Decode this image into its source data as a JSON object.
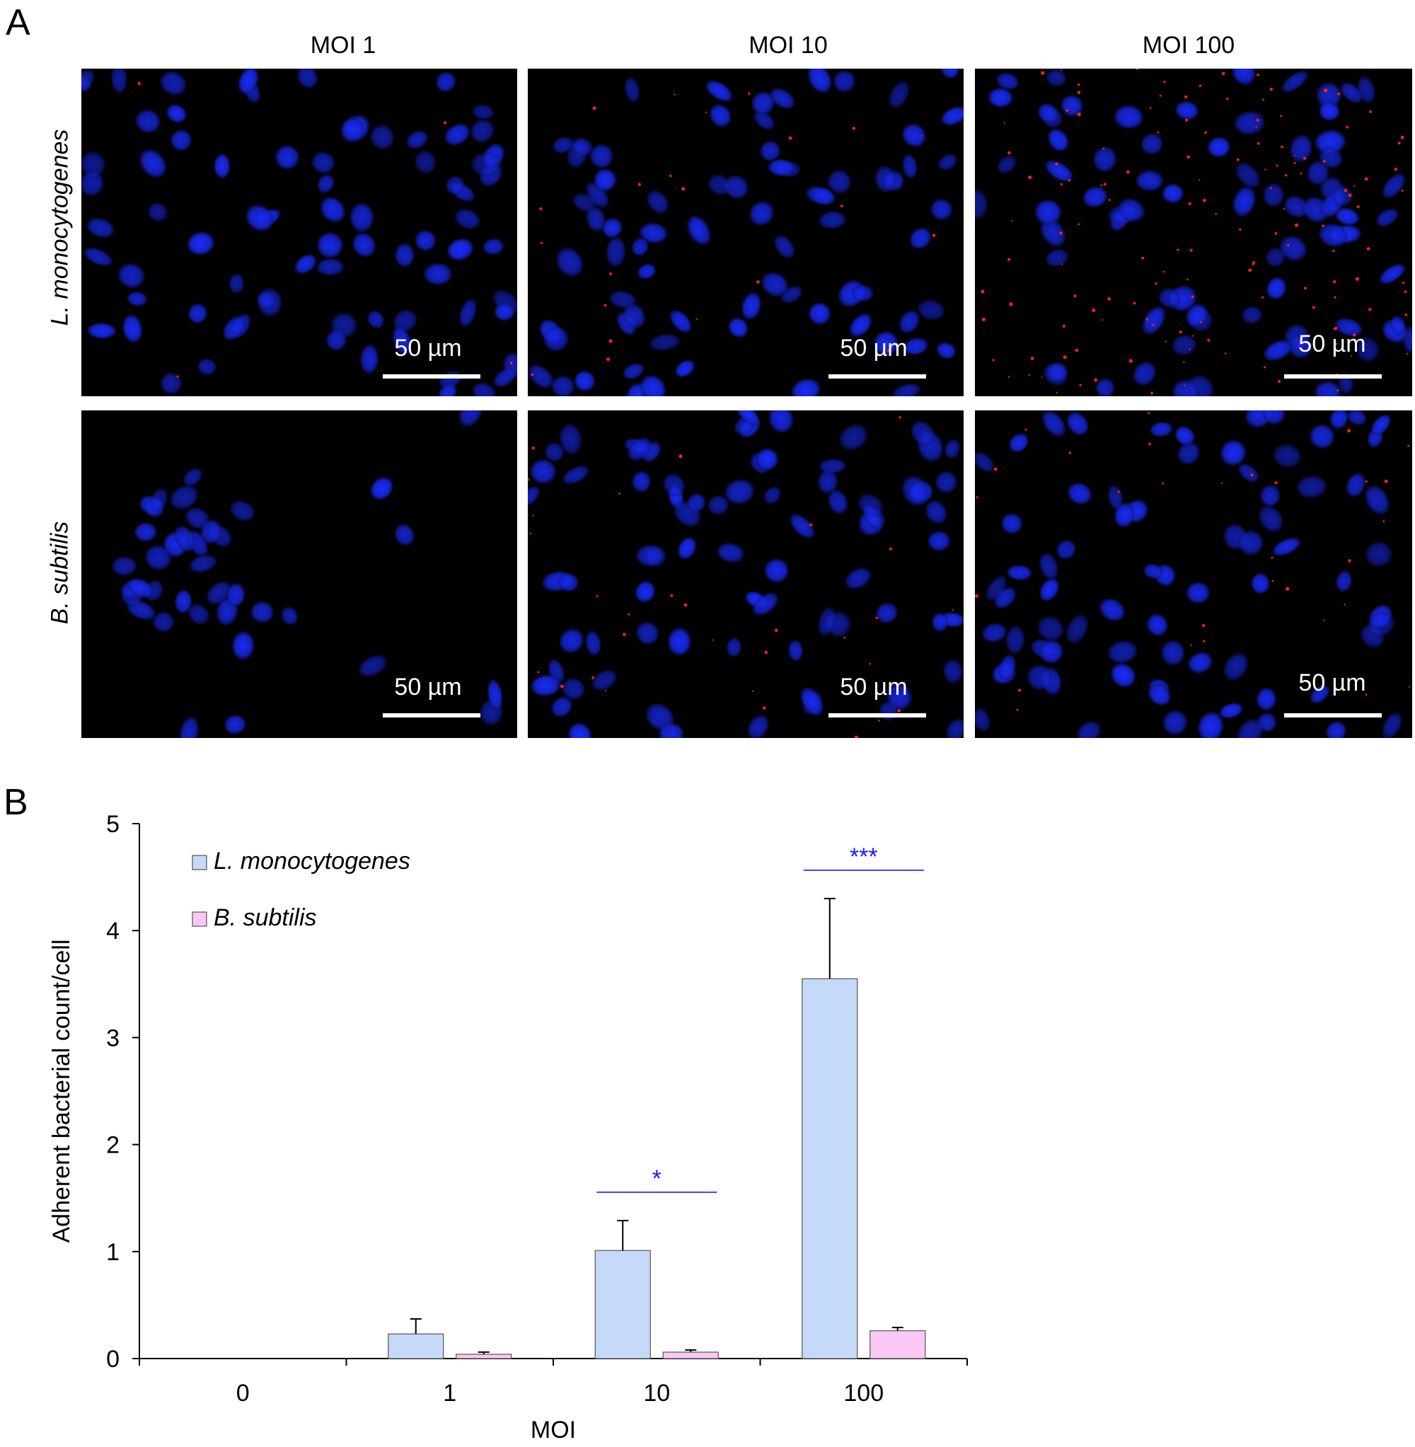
{
  "panel_a": {
    "letter": "A",
    "columns": [
      "MOI 1",
      "MOI 10",
      "MOI 100"
    ],
    "rows": [
      "L. monocytogenes",
      "B. subtilis"
    ],
    "scale_label": "50 µm",
    "colors": {
      "nucleus": "#1a2cff",
      "bacteria": "#ff2020",
      "background": "#000000"
    }
  },
  "panel_b": {
    "letter": "B",
    "legend": [
      {
        "label": "L. monocytogenes",
        "color": "#c5d9f9"
      },
      {
        "label": "B. subtilis",
        "color": "#fbc8f4"
      }
    ],
    "significance": [
      {
        "category": "10",
        "label": "*"
      },
      {
        "category": "100",
        "label": "***"
      }
    ],
    "significance_color": "#1a1aff"
  },
  "chart_data": {
    "type": "bar",
    "categories": [
      "0",
      "1",
      "10",
      "100"
    ],
    "xlabel": "MOI",
    "ylabel": "Adherent bacterial count/cell",
    "ylim": [
      0,
      5
    ],
    "yticks": [
      0,
      1,
      2,
      3,
      4,
      5
    ],
    "series": [
      {
        "name": "L. monocytogenes",
        "values": [
          0,
          0.23,
          1.01,
          3.55
        ],
        "errors": [
          0,
          0.14,
          0.28,
          0.75
        ]
      },
      {
        "name": "B. subtilis",
        "values": [
          0,
          0.04,
          0.06,
          0.26
        ],
        "errors": [
          0,
          0.02,
          0.02,
          0.03
        ]
      }
    ]
  }
}
